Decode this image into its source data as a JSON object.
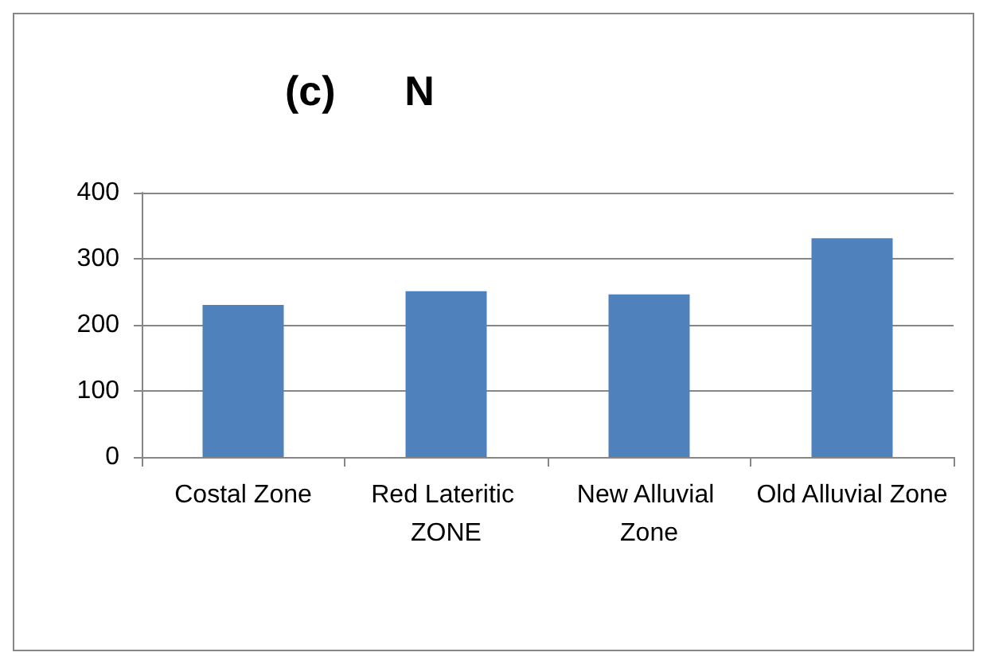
{
  "chart_data": {
    "type": "bar",
    "title": "(c)      N",
    "categories": [
      "Costal Zone",
      "Red Lateritic ZONE",
      "New Alluvial Zone",
      "Old Alluvial Zone"
    ],
    "values": [
      230,
      251,
      246,
      331
    ],
    "color": "#4f81bd",
    "ylim": [
      0,
      400
    ],
    "yticks": [
      0,
      100,
      200,
      300,
      400
    ],
    "grid": "y"
  }
}
